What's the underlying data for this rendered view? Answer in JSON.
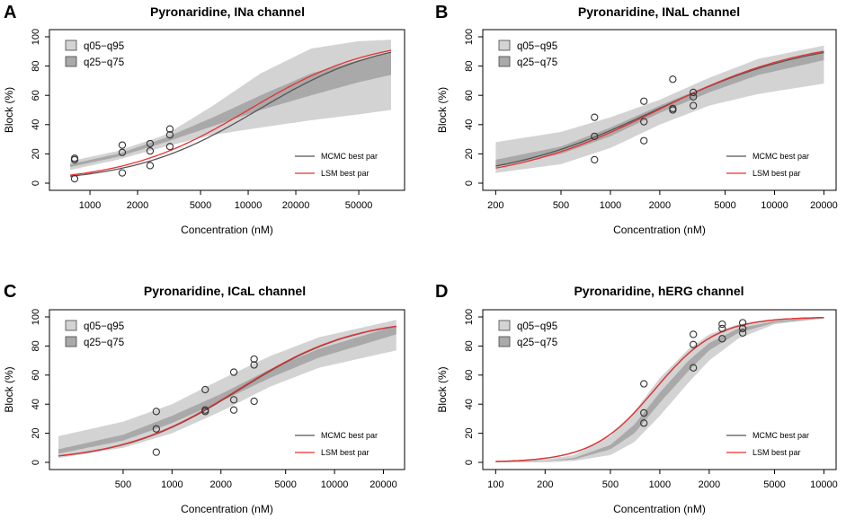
{
  "chart_data": [
    {
      "panel": "A",
      "type": "scatter",
      "title": "Pyronaridine, INa channel",
      "xlabel": "Concentration (nM)",
      "ylabel": "Block (%)",
      "xscale": "log",
      "xlim": [
        600,
        90000
      ],
      "ylim": [
        0,
        100
      ],
      "xticks": [
        1000,
        2000,
        5000,
        10000,
        20000,
        50000
      ],
      "xtick_labels": [
        "1000",
        "2000",
        "5000",
        "10000",
        "20000",
        "50000"
      ],
      "yticks": [
        0,
        20,
        40,
        60,
        80,
        100
      ],
      "ytick_labels": [
        "0",
        "20",
        "40",
        "60",
        "80",
        "100"
      ],
      "points": [
        {
          "x": 800,
          "y": 17
        },
        {
          "x": 800,
          "y": 16
        },
        {
          "x": 800,
          "y": 3
        },
        {
          "x": 1600,
          "y": 26
        },
        {
          "x": 1600,
          "y": 21
        },
        {
          "x": 1600,
          "y": 7
        },
        {
          "x": 2400,
          "y": 27
        },
        {
          "x": 2400,
          "y": 22
        },
        {
          "x": 2400,
          "y": 12
        },
        {
          "x": 3200,
          "y": 37
        },
        {
          "x": 3200,
          "y": 33
        },
        {
          "x": 3200,
          "y": 25
        }
      ],
      "curve_x_range": [
        750,
        80000
      ],
      "mcmc": {
        "ic50": 11500,
        "hill": 1.1
      },
      "lsm": {
        "ic50": 10000,
        "hill": 1.1
      },
      "band_q05_q95": {
        "x": [
          750,
          1500,
          3000,
          6000,
          12000,
          25000,
          50000,
          80000
        ],
        "lower": [
          9,
          16,
          25,
          33,
          38,
          43,
          47,
          50
        ],
        "upper": [
          15,
          22,
          33,
          53,
          75,
          92,
          97,
          98
        ]
      },
      "band_q25_q75": {
        "x": [
          750,
          1500,
          3000,
          6000,
          12000,
          25000,
          50000,
          80000
        ],
        "lower": [
          11,
          18,
          28,
          39,
          50,
          60,
          69,
          74
        ],
        "upper": [
          13,
          20,
          31,
          45,
          60,
          75,
          84,
          89
        ]
      },
      "legend": {
        "position": "top-left",
        "entries": [
          "q05−q95",
          "q25−q75"
        ]
      },
      "legend2": {
        "position": "bottom-right",
        "entries": [
          "MCMC best par",
          "LSM best par"
        ]
      }
    },
    {
      "panel": "B",
      "type": "scatter",
      "title": "Pyronaridine, INaL channel",
      "xlabel": "Concentration (nM)",
      "ylabel": "Block (%)",
      "xscale": "log",
      "xlim": [
        180,
        22000
      ],
      "ylim": [
        0,
        100
      ],
      "xticks": [
        200,
        500,
        1000,
        2000,
        5000,
        10000,
        20000
      ],
      "xtick_labels": [
        "200",
        "500",
        "1000",
        "2000",
        "5000",
        "10000",
        "20000"
      ],
      "yticks": [
        0,
        20,
        40,
        60,
        80,
        100
      ],
      "ytick_labels": [
        "0",
        "20",
        "40",
        "60",
        "80",
        "100"
      ],
      "points": [
        {
          "x": 800,
          "y": 45
        },
        {
          "x": 800,
          "y": 32
        },
        {
          "x": 800,
          "y": 16
        },
        {
          "x": 1600,
          "y": 56
        },
        {
          "x": 1600,
          "y": 42
        },
        {
          "x": 1600,
          "y": 29
        },
        {
          "x": 2400,
          "y": 71
        },
        {
          "x": 2400,
          "y": 51
        },
        {
          "x": 2400,
          "y": 50
        },
        {
          "x": 3200,
          "y": 62
        },
        {
          "x": 3200,
          "y": 59
        },
        {
          "x": 3200,
          "y": 53
        }
      ],
      "curve_x_range": [
        200,
        20000
      ],
      "mcmc": {
        "ic50": 1900,
        "hill": 0.9
      },
      "lsm": {
        "ic50": 1950,
        "hill": 0.95
      },
      "band_q05_q95": {
        "x": [
          200,
          500,
          1000,
          2000,
          4000,
          8000,
          20000
        ],
        "lower": [
          7,
          13,
          24,
          40,
          53,
          61,
          68
        ],
        "upper": [
          28,
          35,
          45,
          57,
          72,
          85,
          94
        ]
      },
      "band_q25_q75": {
        "x": [
          200,
          500,
          1000,
          2000,
          4000,
          8000,
          20000
        ],
        "lower": [
          11,
          20,
          32,
          48,
          62,
          74,
          84
        ],
        "upper": [
          16,
          25,
          38,
          53,
          67,
          79,
          90
        ]
      },
      "legend": {
        "position": "top-left",
        "entries": [
          "q05−q95",
          "q25−q75"
        ]
      },
      "legend2": {
        "position": "bottom-right",
        "entries": [
          "MCMC best par",
          "LSM best par"
        ]
      }
    },
    {
      "panel": "C",
      "type": "scatter",
      "title": "Pyronaridine, ICaL channel",
      "xlabel": "Concentration (nM)",
      "ylabel": "Block (%)",
      "xscale": "log",
      "xlim": [
        190,
        25000
      ],
      "ylim": [
        0,
        100
      ],
      "xticks": [
        500,
        1000,
        2000,
        5000,
        10000,
        20000
      ],
      "xtick_labels": [
        "500",
        "1000",
        "2000",
        "5000",
        "10000",
        "20000"
      ],
      "yticks": [
        0,
        20,
        40,
        60,
        80,
        100
      ],
      "ytick_labels": [
        "0",
        "20",
        "40",
        "60",
        "80",
        "100"
      ],
      "points": [
        {
          "x": 800,
          "y": 35
        },
        {
          "x": 800,
          "y": 23
        },
        {
          "x": 800,
          "y": 7
        },
        {
          "x": 1600,
          "y": 50
        },
        {
          "x": 1600,
          "y": 36
        },
        {
          "x": 1600,
          "y": 35
        },
        {
          "x": 2400,
          "y": 62
        },
        {
          "x": 2400,
          "y": 43
        },
        {
          "x": 2400,
          "y": 36
        },
        {
          "x": 3200,
          "y": 71
        },
        {
          "x": 3200,
          "y": 67
        },
        {
          "x": 3200,
          "y": 42
        }
      ],
      "curve_x_range": [
        200,
        24000
      ],
      "mcmc": {
        "ic50": 2600,
        "hill": 1.2
      },
      "lsm": {
        "ic50": 2550,
        "hill": 1.2
      },
      "band_q05_q95": {
        "x": [
          200,
          500,
          1000,
          2000,
          4000,
          8000,
          24000
        ],
        "lower": [
          3,
          10,
          20,
          35,
          52,
          65,
          77
        ],
        "upper": [
          18,
          28,
          40,
          57,
          73,
          86,
          98
        ]
      },
      "band_q25_q75": {
        "x": [
          200,
          500,
          1000,
          2000,
          4000,
          8000,
          24000
        ],
        "lower": [
          6,
          15,
          27,
          42,
          58,
          72,
          88
        ],
        "upper": [
          9,
          19,
          32,
          47,
          64,
          78,
          94
        ]
      },
      "legend": {
        "position": "top-left",
        "entries": [
          "q05−q95",
          "q25−q75"
        ]
      },
      "legend2": {
        "position": "bottom-right",
        "entries": [
          "MCMC best par",
          "LSM best par"
        ]
      }
    },
    {
      "panel": "D",
      "type": "scatter",
      "title": "Pyronaridine, hERG channel",
      "xlabel": "Concentration (nM)",
      "ylabel": "Block (%)",
      "xscale": "log",
      "xlim": [
        90,
        11000
      ],
      "ylim": [
        0,
        100
      ],
      "xticks": [
        100,
        200,
        500,
        1000,
        2000,
        5000,
        10000
      ],
      "xtick_labels": [
        "100",
        "200",
        "500",
        "1000",
        "2000",
        "5000",
        "10000"
      ],
      "yticks": [
        0,
        20,
        40,
        60,
        80,
        100
      ],
      "ytick_labels": [
        "0",
        "20",
        "40",
        "60",
        "80",
        "100"
      ],
      "points": [
        {
          "x": 800,
          "y": 54
        },
        {
          "x": 800,
          "y": 34
        },
        {
          "x": 800,
          "y": 27
        },
        {
          "x": 1600,
          "y": 88
        },
        {
          "x": 1600,
          "y": 81
        },
        {
          "x": 1600,
          "y": 65
        },
        {
          "x": 2400,
          "y": 95
        },
        {
          "x": 2400,
          "y": 92
        },
        {
          "x": 2400,
          "y": 85
        },
        {
          "x": 3200,
          "y": 96
        },
        {
          "x": 3200,
          "y": 92
        },
        {
          "x": 3200,
          "y": 89
        }
      ],
      "curve_x_range": [
        100,
        10000
      ],
      "mcmc": {
        "ic50": 930,
        "hill": 2.3
      },
      "lsm": {
        "ic50": 930,
        "hill": 2.3
      },
      "band_q05_q95": {
        "x": [
          100,
          200,
          300,
          500,
          700,
          1000,
          1500,
          2000,
          3000,
          5000,
          10000
        ],
        "lower": [
          0,
          0,
          1,
          5,
          14,
          32,
          55,
          70,
          85,
          95,
          99
        ],
        "upper": [
          1,
          2,
          5,
          18,
          35,
          58,
          78,
          88,
          95,
          98,
          100
        ]
      },
      "band_q25_q75": {
        "x": [
          100,
          200,
          300,
          500,
          700,
          1000,
          1500,
          2000,
          3000,
          5000,
          10000
        ],
        "lower": [
          0,
          1,
          2,
          9,
          20,
          41,
          63,
          77,
          89,
          96,
          99
        ],
        "upper": [
          1,
          1,
          3,
          12,
          26,
          48,
          70,
          82,
          92,
          97,
          100
        ]
      },
      "legend": {
        "position": "top-left",
        "entries": [
          "q05−q95",
          "q25−q75"
        ]
      },
      "legend2": {
        "position": "bottom-right",
        "entries": [
          "MCMC best par",
          "LSM best par"
        ]
      }
    }
  ],
  "colors": {
    "outer_band": "#d3d3d3",
    "inner_band": "#a9a9a9",
    "mcmc_line": "#555555",
    "lsm_line": "#e8312f",
    "point_stroke": "#333333"
  }
}
